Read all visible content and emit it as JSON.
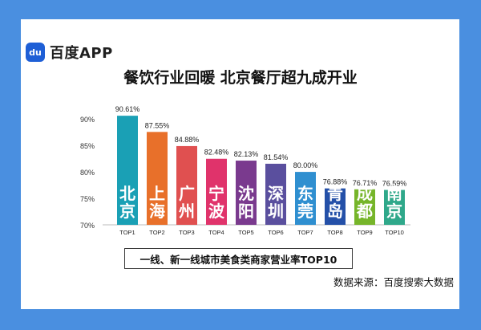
{
  "brand": {
    "name": "百度APP",
    "icon": "baidu-paw-icon",
    "icon_text": "du"
  },
  "title": "餐饮行业回暖 北京餐厅超九成开业",
  "legend_caption": "一线、新一线城市美食类商家营业率TOP10",
  "source": "数据来源：百度搜索大数据",
  "chart_data": {
    "type": "bar",
    "categories": [
      "TOP1",
      "TOP2",
      "TOP3",
      "TOP4",
      "TOP5",
      "TOP6",
      "TOP7",
      "TOP8",
      "TOP9",
      "TOP10"
    ],
    "city_labels": [
      "北京",
      "上海",
      "广州",
      "宁波",
      "沈阳",
      "深圳",
      "东莞",
      "青岛",
      "成都",
      "南京"
    ],
    "values": [
      90.61,
      87.55,
      84.88,
      82.48,
      82.13,
      81.54,
      80.0,
      76.88,
      76.71,
      76.59
    ],
    "value_labels": [
      "90.61%",
      "87.55%",
      "84.88%",
      "82.48%",
      "82.13%",
      "81.54%",
      "80.00%",
      "76.88%",
      "76.71%",
      "76.59%"
    ],
    "bar_colors": [
      "#1aa0b5",
      "#e8702a",
      "#e05050",
      "#e0336b",
      "#7a3a8e",
      "#5a4f9e",
      "#2f8fd0",
      "#2450a8",
      "#76b52a",
      "#2fa88a"
    ],
    "y_ticks": [
      "70%",
      "75%",
      "80%",
      "85%",
      "90%"
    ],
    "y_tick_values": [
      70,
      75,
      80,
      85,
      90
    ],
    "ylim": [
      70,
      92
    ]
  }
}
